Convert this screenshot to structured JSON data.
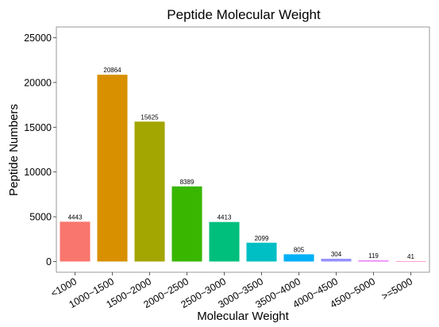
{
  "chart_data": {
    "type": "bar",
    "title": "Peptide Molecular Weight",
    "xlabel": "Molecular Weight",
    "ylabel": "Peptide Numbers",
    "ylim": [
      -1200,
      26200
    ],
    "yticks": [
      0,
      5000,
      10000,
      15000,
      20000,
      25000
    ],
    "grid": false,
    "legend": "none",
    "categories": [
      "<1000",
      "1000~1500",
      "1500~2000",
      "2000~2500",
      "2500~3000",
      "3000~3500",
      "3500~4000",
      "4000~4500",
      "4500~5000",
      ">=5000"
    ],
    "values": [
      4443,
      20864,
      15625,
      8389,
      4413,
      2099,
      805,
      304,
      119,
      41
    ],
    "colors": [
      "#F8766D",
      "#D89000",
      "#A3A500",
      "#39B600",
      "#00BF7D",
      "#00BFC4",
      "#00B0F6",
      "#9590FF",
      "#E76BF3",
      "#FF62BC"
    ]
  }
}
